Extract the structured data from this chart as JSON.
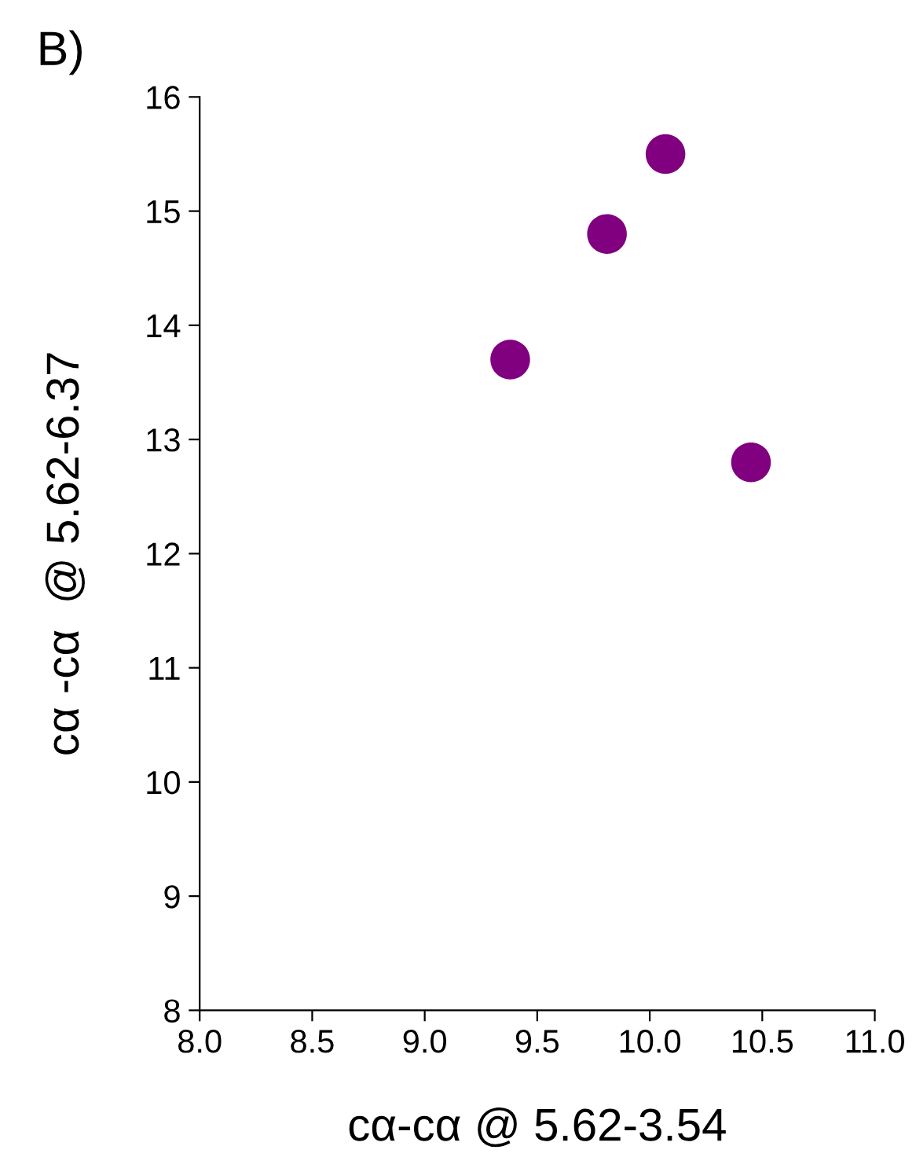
{
  "chart_data": {
    "type": "scatter",
    "title": "B)",
    "xlabel": "cα-cα @ 5.62-3.54",
    "ylabel": "cα -cα  @ 5.62-6.37",
    "x": [
      9.38,
      9.81,
      10.07,
      10.45
    ],
    "series": [
      {
        "color": "#800080",
        "values": [
          13.7,
          14.8,
          15.5,
          12.8
        ]
      }
    ],
    "xlim": [
      8.0,
      11.0
    ],
    "xticks": [
      {
        "value": 8,
        "label": "8.0"
      },
      {
        "value": 8.5,
        "label": "8.5"
      },
      {
        "value": 9,
        "label": "9.0"
      },
      {
        "value": 9.5,
        "label": "9.5"
      },
      {
        "value": 10,
        "label": "10.0"
      },
      {
        "value": 10.5,
        "label": "10.5"
      },
      {
        "value": 11,
        "label": "11.0"
      }
    ],
    "ylim": [
      8,
      16
    ],
    "yticks": [
      8,
      9,
      10,
      11,
      12,
      13,
      14,
      15,
      16
    ],
    "marker": "circle",
    "grid": false,
    "legend": false
  }
}
